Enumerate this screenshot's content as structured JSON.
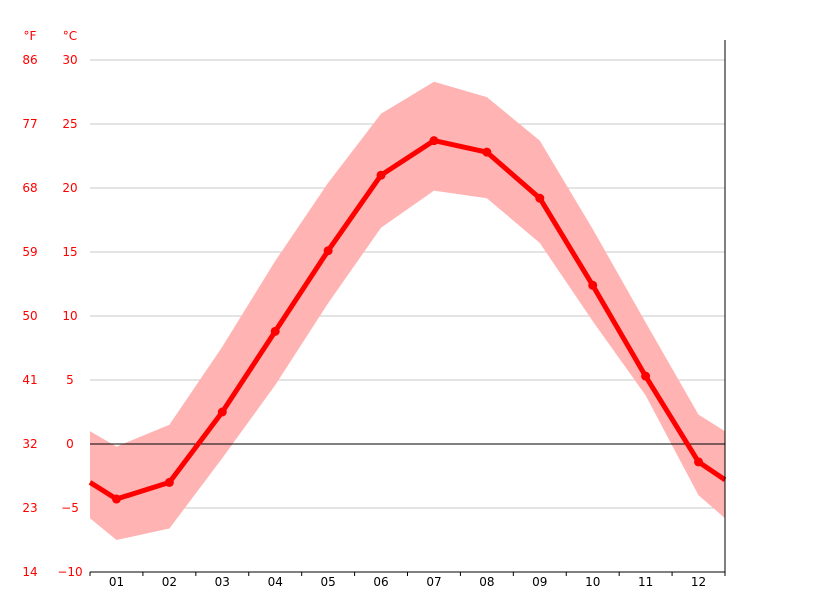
{
  "chart_data": {
    "type": "line",
    "unit_labels": {
      "fahrenheit": "°F",
      "celsius": "°C"
    },
    "categories": [
      "01",
      "02",
      "03",
      "04",
      "05",
      "06",
      "07",
      "08",
      "09",
      "10",
      "11",
      "12"
    ],
    "y_ticks_celsius": [
      "30",
      "25",
      "20",
      "15",
      "10",
      "5",
      "0",
      "−5",
      "−10"
    ],
    "y_ticks_fahrenheit": [
      "86",
      "77",
      "68",
      "59",
      "50",
      "41",
      "32",
      "23",
      "14"
    ],
    "ylim": [
      -10,
      30
    ],
    "grid": true,
    "series": [
      {
        "values": [
          -4.3,
          -3.0,
          2.5,
          8.8,
          15.1,
          21.0,
          23.7,
          22.8,
          19.2,
          12.4,
          5.3,
          -1.4
        ]
      }
    ],
    "range_band": {
      "max": [
        -0.2,
        1.5,
        7.6,
        14.3,
        20.4,
        25.8,
        28.3,
        27.1,
        23.7,
        16.8,
        9.5,
        2.3
      ],
      "min": [
        -7.5,
        -6.6,
        -1.1,
        4.6,
        11.0,
        16.9,
        19.8,
        19.2,
        15.7,
        9.6,
        3.8,
        -4.0
      ]
    },
    "edge_values": {
      "left": {
        "mean": -3.0,
        "max": 1.0,
        "min": -5.8
      },
      "right": {
        "mean": -2.8,
        "max": 1.0,
        "min": -5.8
      }
    },
    "colors": {
      "line": "#ff0000",
      "band": "#ffb3b3",
      "grid": "#c8c8c8",
      "zero_line": "#000000",
      "axis_labels": "#ff0000"
    }
  }
}
